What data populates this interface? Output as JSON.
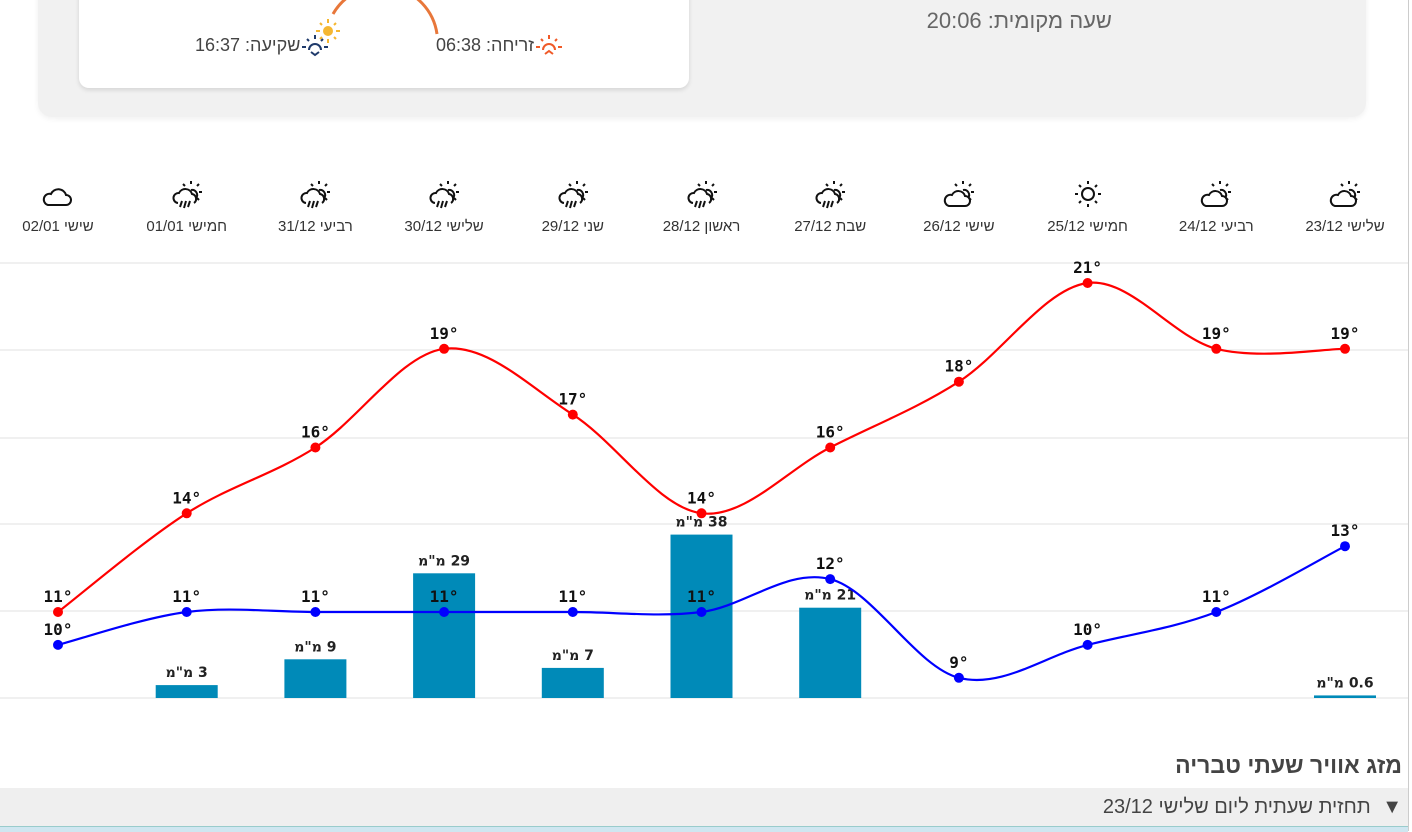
{
  "sun": {
    "sunrise_label": "זריחה: 06:38",
    "sunset_label": "שקיעה: 16:37",
    "arc_color": "#e8773a",
    "sun_color": "#f5b731",
    "sunrise_icon_color": "#f05a28",
    "sunset_icon_color": "#1f3a6b"
  },
  "local_time": "שעה מקומית: 20:06",
  "days": [
    {
      "label": "שלישי 23/12",
      "icon": "partly-cloudy-icon"
    },
    {
      "label": "רביעי 24/12",
      "icon": "partly-cloudy-icon"
    },
    {
      "label": "חמישי 25/12",
      "icon": "sun-icon"
    },
    {
      "label": "שישי 26/12",
      "icon": "partly-cloudy-icon"
    },
    {
      "label": "שבת 27/12",
      "icon": "rain-sun-icon"
    },
    {
      "label": "ראשון 28/12",
      "icon": "rain-sun-icon"
    },
    {
      "label": "שני 29/12",
      "icon": "rain-sun-icon"
    },
    {
      "label": "שלישי 30/12",
      "icon": "rain-sun-icon"
    },
    {
      "label": "רביעי 31/12",
      "icon": "rain-sun-icon"
    },
    {
      "label": "חמישי 01/01",
      "icon": "rain-sun-icon"
    },
    {
      "label": "שישי 02/01",
      "icon": "cloud-icon"
    }
  ],
  "chart_data": {
    "type": "line",
    "categories": [
      "23/12",
      "24/12",
      "25/12",
      "26/12",
      "27/12",
      "28/12",
      "29/12",
      "30/12",
      "31/12",
      "01/01",
      "02/01"
    ],
    "series": [
      {
        "key": "high",
        "color": "#ff0000",
        "values": [
          19,
          19,
          21,
          18,
          16,
          14,
          17,
          19,
          16,
          14,
          11
        ]
      },
      {
        "key": "low",
        "color": "#0000ff",
        "values": [
          13,
          11,
          10,
          9,
          12,
          11,
          11,
          11,
          11,
          11,
          10
        ]
      }
    ],
    "rain": {
      "type": "bar",
      "color": "#008ab8",
      "unit": "מ\"מ",
      "values": [
        0.6,
        null,
        null,
        null,
        21,
        38,
        7,
        29,
        9,
        3,
        null
      ]
    },
    "degree_suffix": "°",
    "grid": true
  },
  "hourly": {
    "title": "מזג אוויר שעתי טבריה",
    "toggle_icon": "▼",
    "toggle_label": "תחזית שעתית ליום שלישי 23/12"
  }
}
